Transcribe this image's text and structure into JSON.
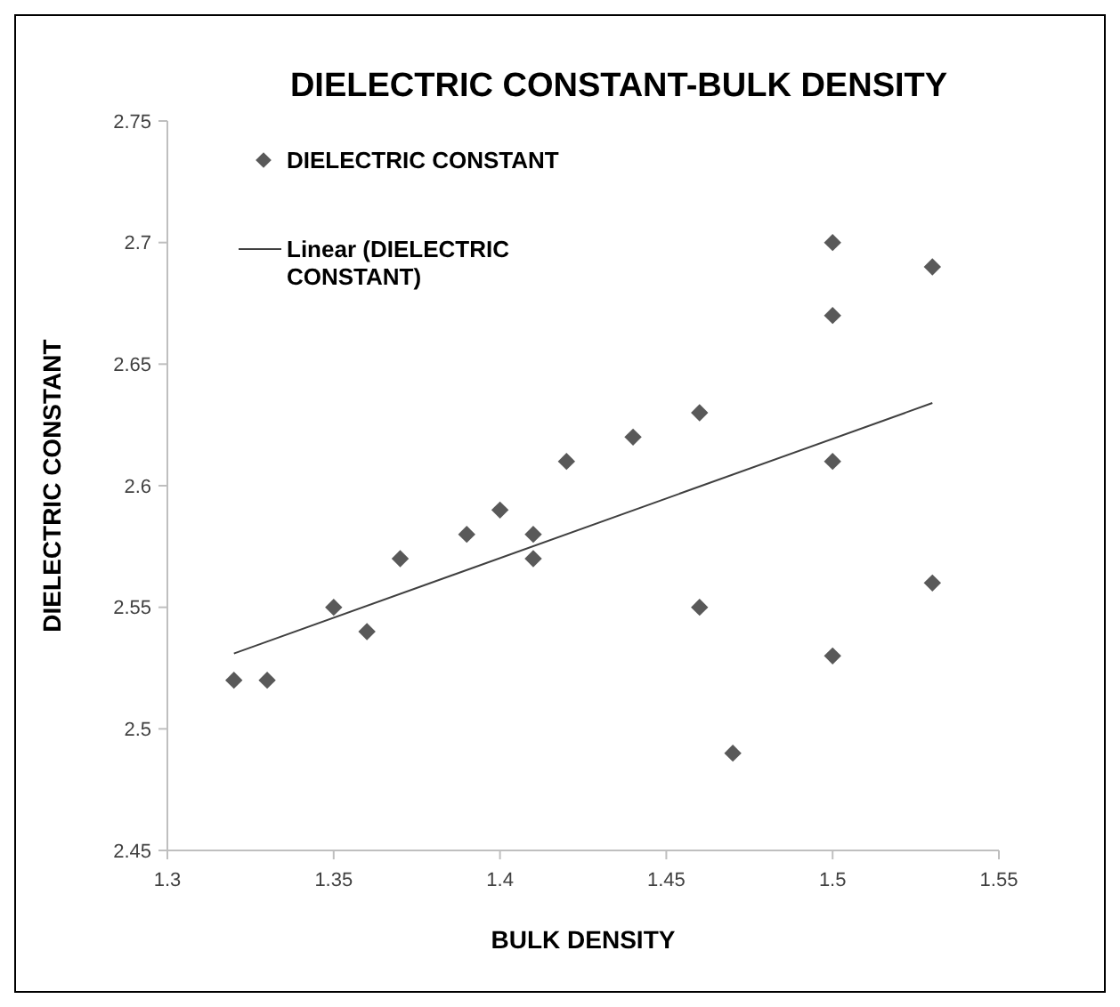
{
  "chart_data": {
    "type": "scatter",
    "title": "DIELECTRIC CONSTANT-BULK DENSITY",
    "xlabel": "BULK DENSITY",
    "ylabel": "DIELECTRIC CONSTANT",
    "xlim": [
      1.3,
      1.55
    ],
    "xticks": [
      1.3,
      1.35,
      1.4,
      1.45,
      1.5,
      1.55
    ],
    "ylim": [
      2.45,
      2.75
    ],
    "yticks": [
      2.45,
      2.5,
      2.55,
      2.6,
      2.65,
      2.7,
      2.75
    ],
    "grid": false,
    "legend": "top left",
    "series": [
      {
        "name": "DIELECTRIC CONSTANT",
        "marker": "diamond",
        "color": "#595959",
        "x": [
          1.32,
          1.33,
          1.35,
          1.36,
          1.37,
          1.39,
          1.4,
          1.41,
          1.41,
          1.42,
          1.44,
          1.46,
          1.46,
          1.47,
          1.5,
          1.5,
          1.5,
          1.5,
          1.53,
          1.53
        ],
        "values": [
          2.52,
          2.52,
          2.55,
          2.54,
          2.57,
          2.58,
          2.59,
          2.58,
          2.57,
          2.61,
          2.62,
          2.63,
          2.55,
          2.49,
          2.7,
          2.67,
          2.61,
          2.53,
          2.69,
          2.56
        ]
      },
      {
        "name": "Linear (DIELECTRIC CONSTANT)",
        "type": "line",
        "marker": "none",
        "color": "#404040",
        "line_style": "solid",
        "x": [
          1.32,
          1.53
        ],
        "values": [
          2.531,
          2.634
        ]
      }
    ]
  }
}
